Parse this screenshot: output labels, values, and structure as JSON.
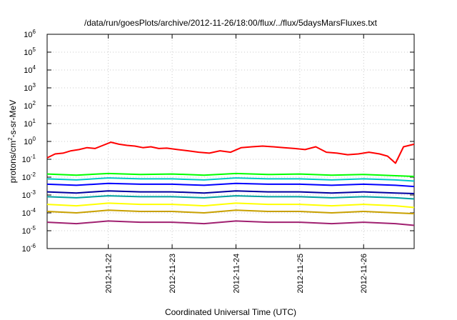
{
  "chart_data": {
    "type": "line",
    "title": "/data/run/goesPlots/archive/2012-11-26/18:00/flux/../flux/5daysMarsFluxes.txt",
    "xlabel": "Coordinated Universal Time (UTC)",
    "ylabel_parts": [
      "protons/cm",
      "2",
      "-s-sr-MeV"
    ],
    "y_scale": "log",
    "ylim": [
      1e-06,
      1000000.0
    ],
    "y_ticks": [
      {
        "base": "10",
        "exp": "-6"
      },
      {
        "base": "10",
        "exp": "-5"
      },
      {
        "base": "10",
        "exp": "-4"
      },
      {
        "base": "10",
        "exp": "-3"
      },
      {
        "base": "10",
        "exp": "-2"
      },
      {
        "base": "10",
        "exp": "-1"
      },
      {
        "base": "10",
        "exp": "0"
      },
      {
        "base": "10",
        "exp": "1"
      },
      {
        "base": "10",
        "exp": "2"
      },
      {
        "base": "10",
        "exp": "3"
      },
      {
        "base": "10",
        "exp": "4"
      },
      {
        "base": "10",
        "exp": "5"
      },
      {
        "base": "10",
        "exp": "6"
      }
    ],
    "xlim": [
      "2012-11-21T01:00",
      "2012-11-26T19:00"
    ],
    "x_ticks": [
      "2012-11-22",
      "2012-11-23",
      "2012-11-24",
      "2012-11-25",
      "2012-11-26"
    ],
    "grid": true,
    "legend": "none",
    "series": [
      {
        "color": "#ff0000",
        "x": [
          "2012-11-21T01:00",
          "2012-11-21T04:00",
          "2012-11-21T07:00",
          "2012-11-21T10:00",
          "2012-11-21T13:00",
          "2012-11-21T16:00",
          "2012-11-21T19:00",
          "2012-11-21T22:00",
          "2012-11-22T01:00",
          "2012-11-22T04:00",
          "2012-11-22T07:00",
          "2012-11-22T10:00",
          "2012-11-22T13:00",
          "2012-11-22T16:00",
          "2012-11-22T19:00",
          "2012-11-22T22:00",
          "2012-11-23T02:00",
          "2012-11-23T06:00",
          "2012-11-23T10:00",
          "2012-11-23T14:00",
          "2012-11-23T18:00",
          "2012-11-23T22:00",
          "2012-11-24T02:00",
          "2012-11-24T06:00",
          "2012-11-24T10:00",
          "2012-11-24T14:00",
          "2012-11-24T18:00",
          "2012-11-24T22:00",
          "2012-11-25T02:00",
          "2012-11-25T06:00",
          "2012-11-25T10:00",
          "2012-11-25T14:00",
          "2012-11-25T18:00",
          "2012-11-25T22:00",
          "2012-11-26T02:00",
          "2012-11-26T06:00",
          "2012-11-26T09:00",
          "2012-11-26T12:00",
          "2012-11-26T15:00",
          "2012-11-26T19:00"
        ],
        "y": [
          0.12,
          0.2,
          0.22,
          0.3,
          0.35,
          0.45,
          0.4,
          0.6,
          0.9,
          0.7,
          0.6,
          0.55,
          0.45,
          0.5,
          0.4,
          0.42,
          0.35,
          0.3,
          0.25,
          0.22,
          0.3,
          0.25,
          0.45,
          0.5,
          0.55,
          0.5,
          0.45,
          0.4,
          0.35,
          0.5,
          0.25,
          0.22,
          0.18,
          0.2,
          0.25,
          0.2,
          0.15,
          0.06,
          0.5,
          0.7
        ]
      },
      {
        "color": "#00ff00",
        "x": [
          "2012-11-21T01:00",
          "2012-11-21T12:00",
          "2012-11-22T00:00",
          "2012-11-22T12:00",
          "2012-11-23T00:00",
          "2012-11-23T12:00",
          "2012-11-24T00:00",
          "2012-11-24T12:00",
          "2012-11-25T00:00",
          "2012-11-25T12:00",
          "2012-11-26T00:00",
          "2012-11-26T12:00",
          "2012-11-26T19:00"
        ],
        "y": [
          0.015,
          0.013,
          0.016,
          0.014,
          0.015,
          0.013,
          0.016,
          0.014,
          0.015,
          0.013,
          0.014,
          0.012,
          0.011
        ]
      },
      {
        "color": "#00c8c8",
        "x": [
          "2012-11-21T01:00",
          "2012-11-21T12:00",
          "2012-11-22T00:00",
          "2012-11-22T12:00",
          "2012-11-23T00:00",
          "2012-11-23T12:00",
          "2012-11-24T00:00",
          "2012-11-24T12:00",
          "2012-11-25T00:00",
          "2012-11-25T12:00",
          "2012-11-26T00:00",
          "2012-11-26T12:00",
          "2012-11-26T19:00"
        ],
        "y": [
          0.008,
          0.007,
          0.009,
          0.008,
          0.008,
          0.007,
          0.009,
          0.008,
          0.008,
          0.007,
          0.008,
          0.007,
          0.006
        ]
      },
      {
        "color": "#0000ff",
        "x": [
          "2012-11-21T01:00",
          "2012-11-21T12:00",
          "2012-11-22T00:00",
          "2012-11-22T12:00",
          "2012-11-23T00:00",
          "2012-11-23T12:00",
          "2012-11-24T00:00",
          "2012-11-24T12:00",
          "2012-11-25T00:00",
          "2012-11-25T12:00",
          "2012-11-26T00:00",
          "2012-11-26T12:00",
          "2012-11-26T19:00"
        ],
        "y": [
          0.004,
          0.0035,
          0.0045,
          0.004,
          0.004,
          0.0035,
          0.0045,
          0.004,
          0.004,
          0.0035,
          0.004,
          0.0035,
          0.003
        ]
      },
      {
        "color": "#0000a0",
        "x": [
          "2012-11-21T01:00",
          "2012-11-21T12:00",
          "2012-11-22T00:00",
          "2012-11-22T12:00",
          "2012-11-23T00:00",
          "2012-11-23T12:00",
          "2012-11-24T00:00",
          "2012-11-24T12:00",
          "2012-11-25T00:00",
          "2012-11-25T12:00",
          "2012-11-26T00:00",
          "2012-11-26T12:00",
          "2012-11-26T19:00"
        ],
        "y": [
          0.0015,
          0.0013,
          0.0017,
          0.0015,
          0.0015,
          0.0013,
          0.0017,
          0.0015,
          0.0015,
          0.0013,
          0.0015,
          0.0013,
          0.0012
        ]
      },
      {
        "color": "#00a0a0",
        "x": [
          "2012-11-21T01:00",
          "2012-11-21T12:00",
          "2012-11-22T00:00",
          "2012-11-22T12:00",
          "2012-11-23T00:00",
          "2012-11-23T12:00",
          "2012-11-24T00:00",
          "2012-11-24T12:00",
          "2012-11-25T00:00",
          "2012-11-25T12:00",
          "2012-11-26T00:00",
          "2012-11-26T12:00",
          "2012-11-26T19:00"
        ],
        "y": [
          0.0008,
          0.0007,
          0.0009,
          0.0008,
          0.0008,
          0.0007,
          0.0009,
          0.0008,
          0.0008,
          0.0007,
          0.0008,
          0.0007,
          0.0006
        ]
      },
      {
        "color": "#ffff00",
        "x": [
          "2012-11-21T01:00",
          "2012-11-21T12:00",
          "2012-11-22T00:00",
          "2012-11-22T12:00",
          "2012-11-23T00:00",
          "2012-11-23T12:00",
          "2012-11-24T00:00",
          "2012-11-24T12:00",
          "2012-11-25T00:00",
          "2012-11-25T12:00",
          "2012-11-26T00:00",
          "2012-11-26T12:00",
          "2012-11-26T19:00"
        ],
        "y": [
          0.0003,
          0.00025,
          0.00035,
          0.0003,
          0.0003,
          0.00025,
          0.00035,
          0.0003,
          0.0003,
          0.00025,
          0.0003,
          0.00025,
          0.0002
        ]
      },
      {
        "color": "#c8a000",
        "x": [
          "2012-11-21T01:00",
          "2012-11-21T12:00",
          "2012-11-22T00:00",
          "2012-11-22T12:00",
          "2012-11-23T00:00",
          "2012-11-23T12:00",
          "2012-11-24T00:00",
          "2012-11-24T12:00",
          "2012-11-25T00:00",
          "2012-11-25T12:00",
          "2012-11-26T00:00",
          "2012-11-26T12:00",
          "2012-11-26T19:00"
        ],
        "y": [
          0.00012,
          0.0001,
          0.00014,
          0.00012,
          0.00012,
          0.0001,
          0.00014,
          0.00012,
          0.00012,
          0.0001,
          0.00012,
          0.0001,
          9e-05
        ]
      },
      {
        "color": "#a02070",
        "x": [
          "2012-11-21T01:00",
          "2012-11-21T12:00",
          "2012-11-22T00:00",
          "2012-11-22T12:00",
          "2012-11-23T00:00",
          "2012-11-23T12:00",
          "2012-11-24T00:00",
          "2012-11-24T12:00",
          "2012-11-25T00:00",
          "2012-11-25T12:00",
          "2012-11-26T00:00",
          "2012-11-26T12:00",
          "2012-11-26T19:00"
        ],
        "y": [
          3e-05,
          2.5e-05,
          3.5e-05,
          3e-05,
          3e-05,
          2.5e-05,
          3.5e-05,
          3e-05,
          3e-05,
          2.5e-05,
          3e-05,
          2.5e-05,
          2e-05
        ]
      }
    ]
  }
}
